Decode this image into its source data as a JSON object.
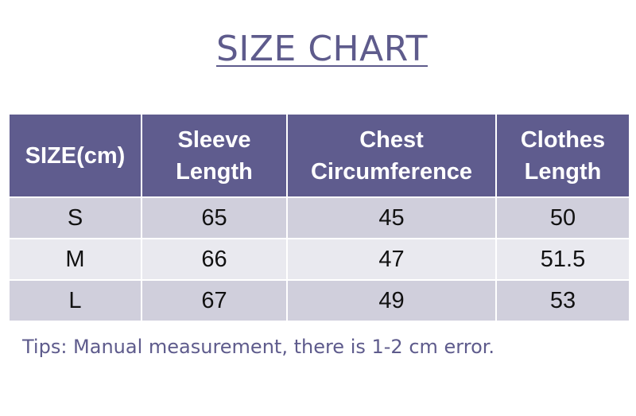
{
  "title": "SIZE CHART",
  "table": {
    "headers": [
      {
        "line1": "SIZE(cm)",
        "line2": ""
      },
      {
        "line1": "Sleeve",
        "line2": "Length"
      },
      {
        "line1": "Chest",
        "line2": "Circumference"
      },
      {
        "line1": "Clothes",
        "line2": "Length"
      }
    ],
    "rows": [
      [
        "S",
        "65",
        "45",
        "50"
      ],
      [
        "M",
        "66",
        "47",
        "51.5"
      ],
      [
        "L",
        "67",
        "49",
        "53"
      ]
    ]
  },
  "tips": "Tips: Manual measurement, there is 1-2 cm error.",
  "colors": {
    "header_bg": "#5f5c8e",
    "row_odd_bg": "#d0cfdc",
    "row_even_bg": "#e9e9ef",
    "title_text": "#5e5b8c"
  }
}
